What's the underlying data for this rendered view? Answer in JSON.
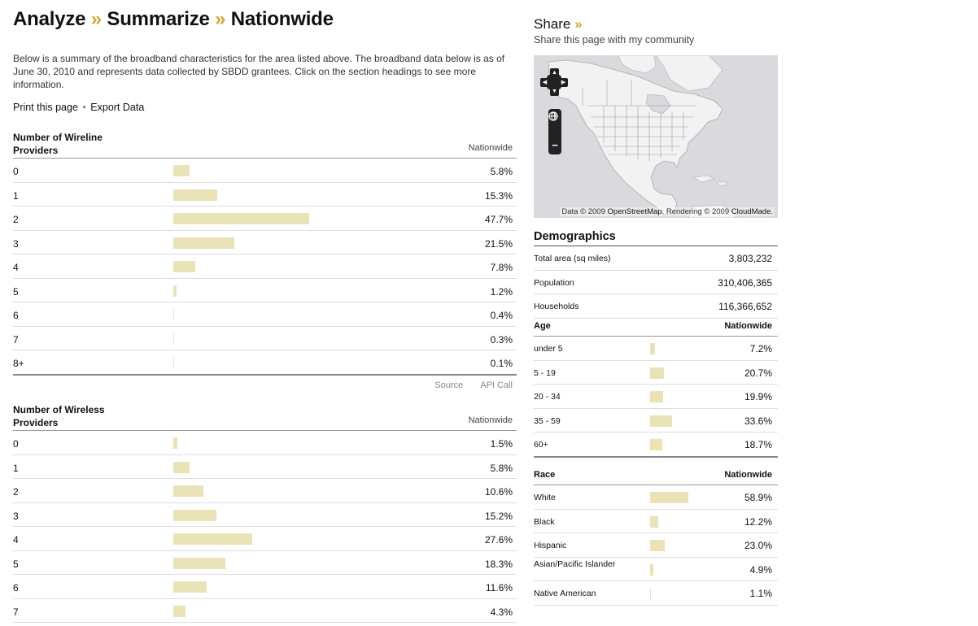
{
  "breadcrumb": {
    "items": [
      "Analyze",
      "Summarize",
      "Nationwide"
    ],
    "separator": "»"
  },
  "intro": "Below is a summary of the broadband characteristics for the area listed above. The broadband data below is as of June 30, 2010 and represents data collected by SBDD grantees. Click on the section headings to see more information.",
  "actions": {
    "print_label": "Print this page",
    "separator": "•",
    "export_label": "Export Data"
  },
  "wireline": {
    "title": "Number of Wireline Providers",
    "column": "Nationwide",
    "rows": [
      {
        "label": "0",
        "value": "5.8%",
        "pct": 5.8
      },
      {
        "label": "1",
        "value": "15.3%",
        "pct": 15.3
      },
      {
        "label": "2",
        "value": "47.7%",
        "pct": 47.7
      },
      {
        "label": "3",
        "value": "21.5%",
        "pct": 21.5
      },
      {
        "label": "4",
        "value": "7.8%",
        "pct": 7.8
      },
      {
        "label": "5",
        "value": "1.2%",
        "pct": 1.2
      },
      {
        "label": "6",
        "value": "0.4%",
        "pct": 0.4
      },
      {
        "label": "7",
        "value": "0.3%",
        "pct": 0.3
      },
      {
        "label": "8+",
        "value": "0.1%",
        "pct": 0.1
      }
    ],
    "source_label": "Source",
    "api_label": "API Call"
  },
  "wireless": {
    "title": "Number of Wireless Providers",
    "column": "Nationwide",
    "rows": [
      {
        "label": "0",
        "value": "1.5%",
        "pct": 1.5
      },
      {
        "label": "1",
        "value": "5.8%",
        "pct": 5.8
      },
      {
        "label": "2",
        "value": "10.6%",
        "pct": 10.6
      },
      {
        "label": "3",
        "value": "15.2%",
        "pct": 15.2
      },
      {
        "label": "4",
        "value": "27.6%",
        "pct": 27.6
      },
      {
        "label": "5",
        "value": "18.3%",
        "pct": 18.3
      },
      {
        "label": "6",
        "value": "11.6%",
        "pct": 11.6
      },
      {
        "label": "7",
        "value": "4.3%",
        "pct": 4.3
      }
    ]
  },
  "share": {
    "title": "Share",
    "arrow": "»",
    "subtitle": "Share this page with my community"
  },
  "map": {
    "attribution_prefix": "Data © 2009 ",
    "osm_label": "OpenStreetMap",
    "attribution_mid": ". Rendering © 2009 ",
    "cloudmade_label": "CloudMade",
    "attribution_suffix": ".",
    "controls": {
      "zoom_in": "+",
      "zoom_out": "−",
      "up": "▲",
      "down": "▼",
      "left": "◀",
      "right": "▶"
    }
  },
  "demographics": {
    "title": "Demographics",
    "rows": [
      {
        "label": "Total area (sq miles)",
        "value": "3,803,232"
      },
      {
        "label": "Population",
        "value": "310,406,365"
      },
      {
        "label": "Households",
        "value": "116,366,652"
      }
    ]
  },
  "age": {
    "title": "Age",
    "column": "Nationwide",
    "rows": [
      {
        "label": "under 5",
        "value": "7.2%",
        "pct": 7.2
      },
      {
        "label": "5 - 19",
        "value": "20.7%",
        "pct": 20.7
      },
      {
        "label": "20 - 34",
        "value": "19.9%",
        "pct": 19.9
      },
      {
        "label": "35 - 59",
        "value": "33.6%",
        "pct": 33.6
      },
      {
        "label": "60+",
        "value": "18.7%",
        "pct": 18.7
      }
    ]
  },
  "race": {
    "title": "Race",
    "column": "Nationwide",
    "rows": [
      {
        "label": "White",
        "value": "58.9%",
        "pct": 58.9
      },
      {
        "label": "Black",
        "value": "12.2%",
        "pct": 12.2
      },
      {
        "label": "Hispanic",
        "value": "23.0%",
        "pct": 23.0
      },
      {
        "label": "Asian/Pacific Islander",
        "value": "4.9%",
        "pct": 4.9
      },
      {
        "label": "Native American",
        "value": "1.1%",
        "pct": 1.1
      }
    ]
  },
  "colors": {
    "bar": "#ebe3b8",
    "accent": "#d4a82c",
    "map_water": "#d9d9de",
    "map_land": "#f2f2f2"
  }
}
